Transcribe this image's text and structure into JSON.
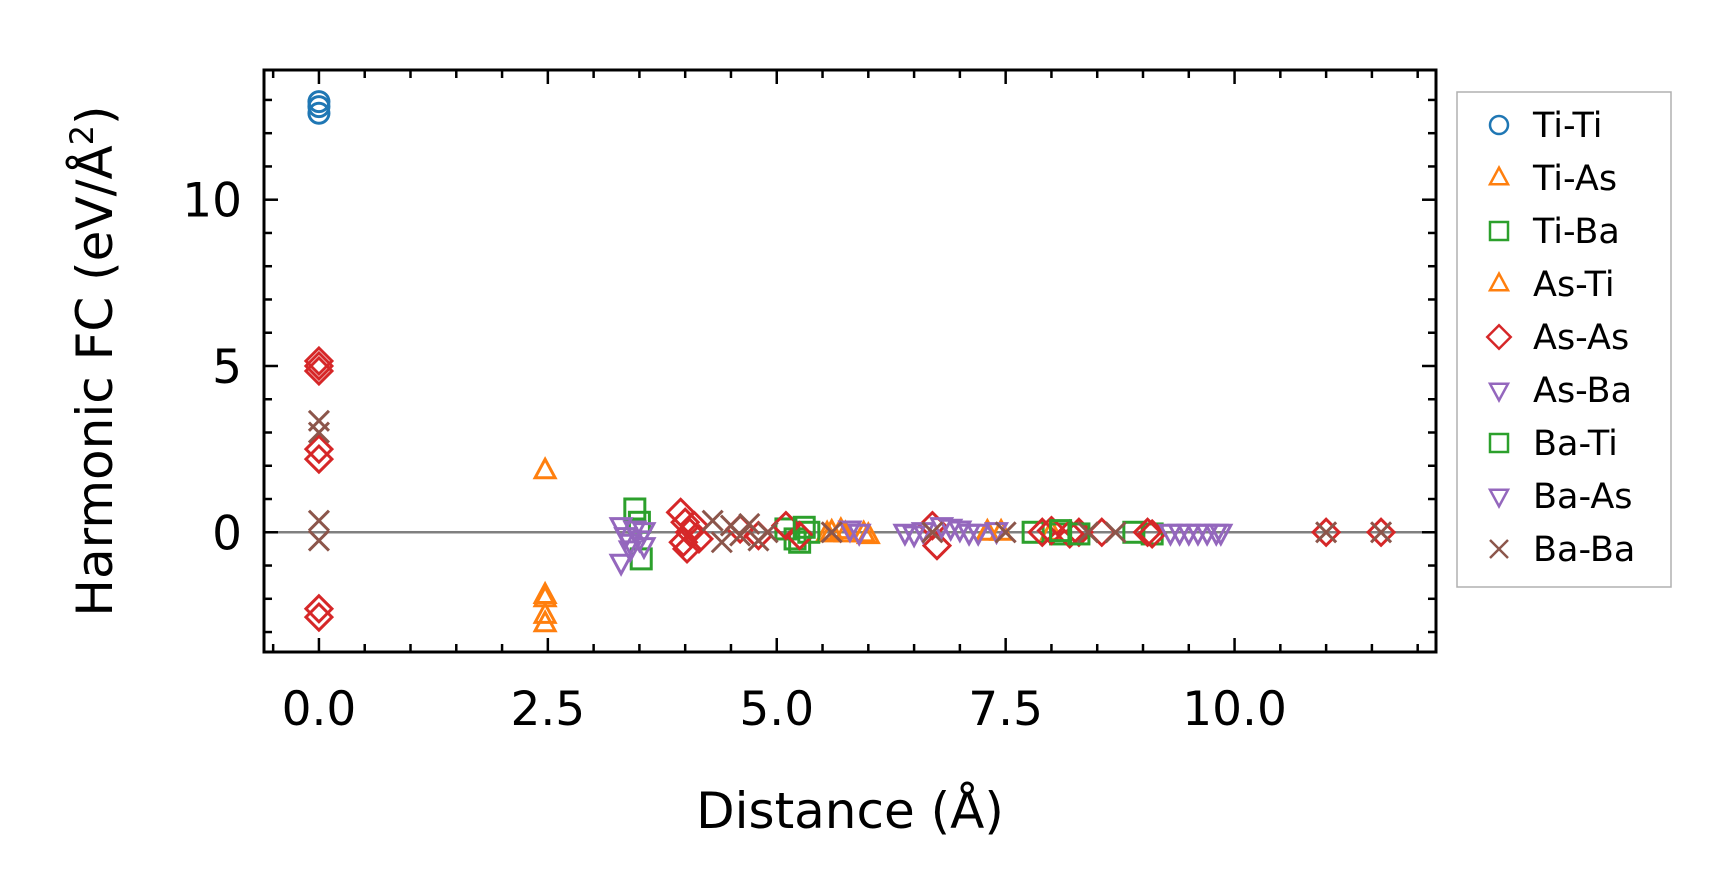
{
  "chart_data": {
    "type": "scatter",
    "xlabel": "Distance (Å)",
    "ylabel": "Harmonic FC (eV/Å²)",
    "ylabel_parts": {
      "pre": "Harmonic FC (eV/Å",
      "sup": "2",
      "post": ")"
    },
    "xlim": [
      -0.6,
      12.2
    ],
    "ylim": [
      -3.6,
      13.9
    ],
    "xticks": [
      {
        "value": 0.0,
        "label": "0.0"
      },
      {
        "value": 2.5,
        "label": "2.5"
      },
      {
        "value": 5.0,
        "label": "5.0"
      },
      {
        "value": 7.5,
        "label": "7.5"
      },
      {
        "value": 10.0,
        "label": "10.0"
      }
    ],
    "yticks": [
      {
        "value": 0,
        "label": "0"
      },
      {
        "value": 5,
        "label": "5"
      },
      {
        "value": 10,
        "label": "10"
      }
    ],
    "x_minor_step": 0.5,
    "y_minor_step": 1,
    "zero_line": true,
    "grid": false,
    "legend_position": "outside-right",
    "series": [
      {
        "name": "Ti-Ti",
        "marker": "circle",
        "color": "#1f77b4",
        "x": [
          0,
          0,
          0
        ],
        "y": [
          12.95,
          12.8,
          12.6
        ]
      },
      {
        "name": "Ti-As",
        "marker": "triangle-up",
        "color": "#ff7f0e",
        "x": [
          2.47,
          2.47,
          2.47,
          2.47,
          5.55,
          5.7,
          5.75,
          5.95,
          7.3,
          7.45,
          8.0
        ],
        "y": [
          1.85,
          -1.9,
          -2.5,
          -2.75,
          -0.05,
          0.05,
          -0.05,
          -0.05,
          0.0,
          0.0,
          0.0
        ]
      },
      {
        "name": "Ti-Ba",
        "marker": "square",
        "color": "#2ca02c",
        "x": [
          3.45,
          3.5,
          3.52,
          5.1,
          5.2,
          5.25,
          5.35,
          7.8,
          8.1,
          8.9,
          9.1
        ],
        "y": [
          0.7,
          0.3,
          -0.8,
          0.1,
          -0.2,
          -0.3,
          0.0,
          0.0,
          -0.05,
          0.0,
          -0.05
        ]
      },
      {
        "name": "As-Ti",
        "marker": "triangle-up",
        "color": "#ff7f0e",
        "x": [
          2.47,
          5.6,
          6.0
        ],
        "y": [
          -2.0,
          0.0,
          -0.1
        ]
      },
      {
        "name": "As-As",
        "marker": "diamond",
        "color": "#d62728",
        "x": [
          0,
          0,
          0,
          0,
          0,
          0,
          0,
          3.95,
          4.0,
          4.05,
          3.98,
          4.02,
          4.1,
          4.15,
          4.6,
          4.8,
          5.1,
          5.25,
          6.7,
          6.75,
          7.9,
          8.0,
          8.2,
          8.3,
          8.55,
          9.05,
          9.1,
          11.0,
          11.6
        ],
        "y": [
          5.15,
          5.0,
          4.85,
          2.5,
          2.2,
          -2.3,
          -2.55,
          0.6,
          0.3,
          0.0,
          -0.3,
          -0.5,
          0.2,
          -0.2,
          0.1,
          -0.1,
          0.2,
          -0.1,
          0.2,
          -0.4,
          0.0,
          0.05,
          -0.05,
          0.0,
          0.0,
          0.0,
          -0.05,
          0.0,
          0.0
        ]
      },
      {
        "name": "As-Ba",
        "marker": "triangle-down",
        "color": "#9467bd",
        "x": [
          3.3,
          3.35,
          3.4,
          3.45,
          3.5,
          3.55,
          3.55,
          5.8,
          6.4,
          6.6,
          6.8,
          7.0,
          7.2,
          9.4,
          9.6,
          9.8
        ],
        "y": [
          0.2,
          -0.1,
          -0.3,
          0.1,
          -0.2,
          0.05,
          -0.4,
          0.1,
          0.0,
          0.05,
          0.2,
          0.1,
          0.0,
          0.0,
          0.0,
          0.0
        ]
      },
      {
        "name": "Ba-Ti",
        "marker": "square",
        "color": "#2ca02c",
        "x": [
          5.3,
          8.1,
          8.3
        ],
        "y": [
          0.15,
          0.05,
          -0.05
        ]
      },
      {
        "name": "Ba-As",
        "marker": "triangle-down",
        "color": "#9467bd",
        "x": [
          3.3,
          3.4,
          5.9,
          6.5,
          6.9,
          7.1,
          7.4,
          9.3,
          9.5,
          9.7,
          9.85
        ],
        "y": [
          -0.9,
          -0.5,
          0.0,
          -0.05,
          0.15,
          0.0,
          0.05,
          0.0,
          0.0,
          0.0,
          0.0
        ]
      },
      {
        "name": "Ba-Ba",
        "marker": "x",
        "color": "#8c564b",
        "x": [
          0,
          0,
          0,
          0,
          4.3,
          4.4,
          4.5,
          4.6,
          4.7,
          4.8,
          4.9,
          5.6,
          6.7,
          7.5,
          8.4,
          8.7,
          11.0,
          11.6
        ],
        "y": [
          3.35,
          3.0,
          0.35,
          -0.25,
          0.35,
          -0.3,
          0.2,
          -0.1,
          0.25,
          -0.25,
          0.0,
          0.0,
          0.0,
          0.0,
          0.0,
          0.0,
          0.0,
          0.0
        ]
      }
    ]
  }
}
